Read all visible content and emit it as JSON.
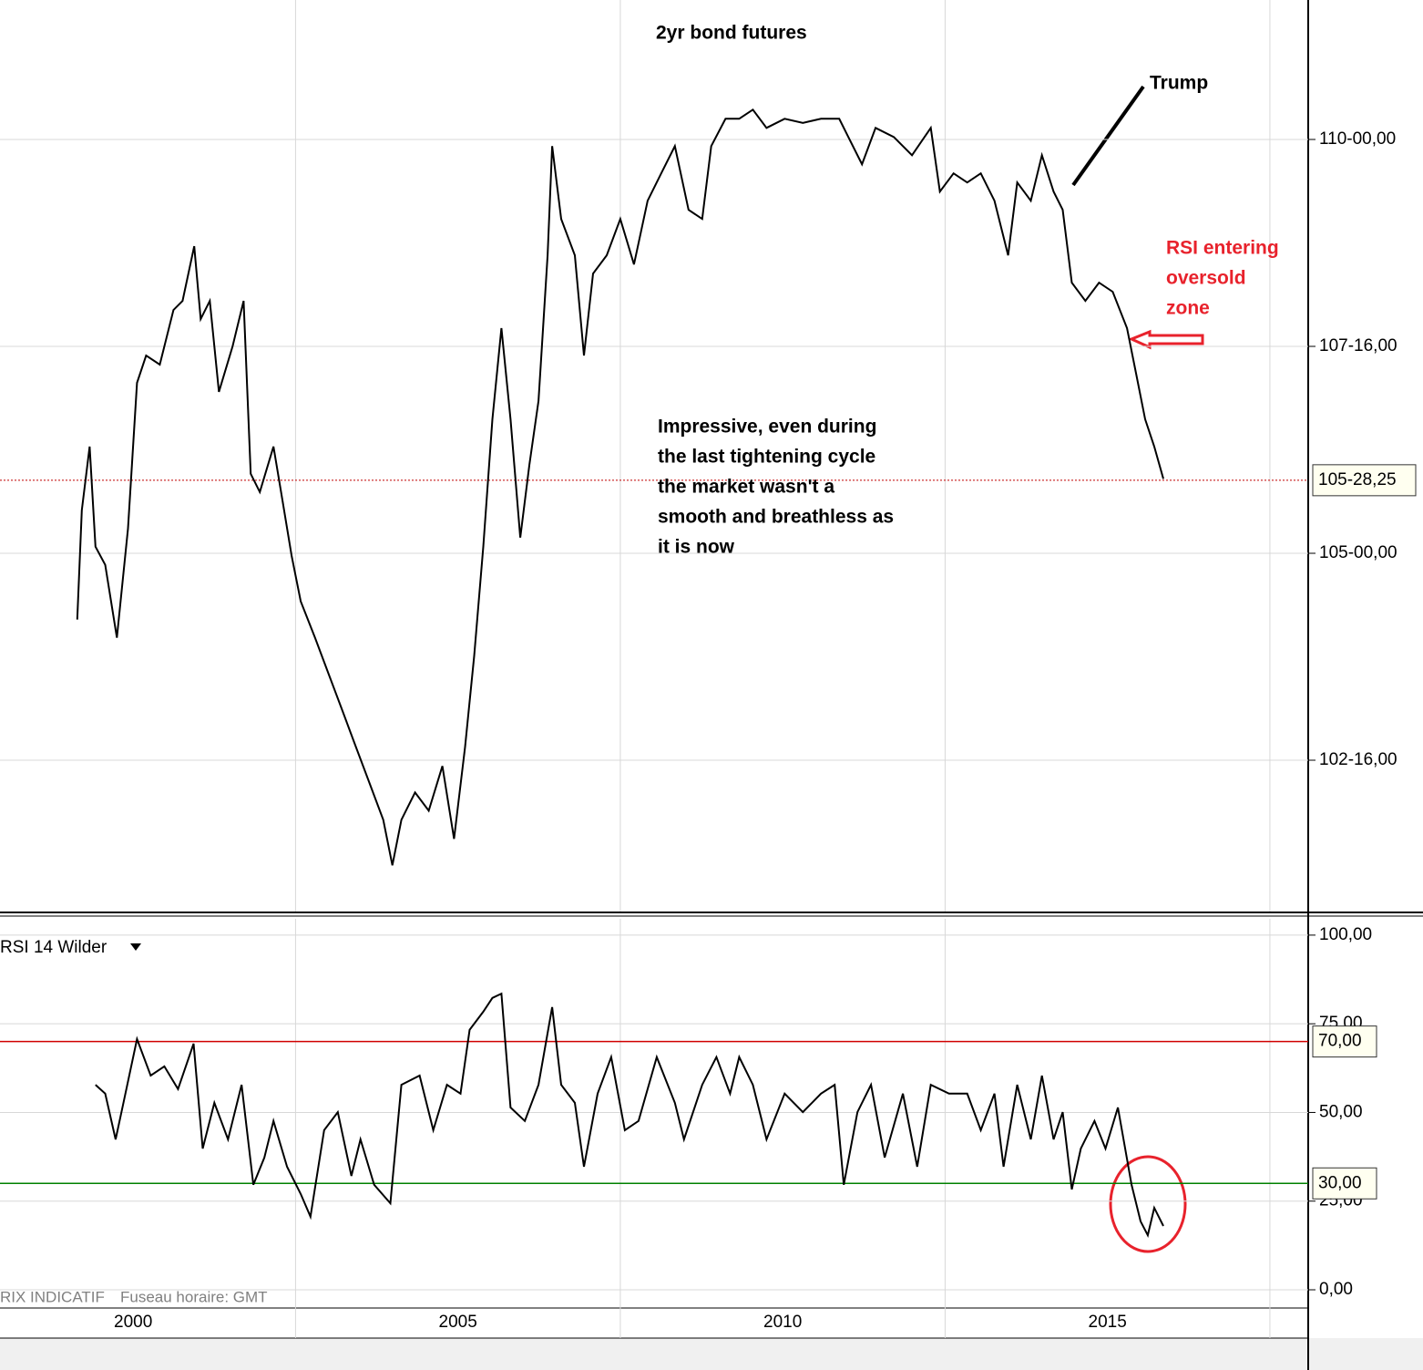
{
  "chart_data": [
    {
      "type": "line",
      "title": "2yr bond futures",
      "color": "#000000",
      "xlim": [
        2000.45,
        2020.59
      ],
      "xgrid": [
        2005,
        2010,
        2015,
        2020
      ],
      "ylim": [
        100.672,
        111.685
      ],
      "yticks": [
        {
          "value": 110,
          "label": "110-00,00"
        },
        {
          "value": 107.5,
          "label": "107-16,00"
        },
        {
          "value": 105,
          "label": "105-00,00"
        },
        {
          "value": 102.5,
          "label": "102-16,00"
        }
      ],
      "last": {
        "value": 105.8828,
        "label": "105-28,25",
        "color": "#c00000"
      },
      "annotations": [
        {
          "lines": [
            "Trump"
          ],
          "color": "#000000"
        },
        {
          "lines": [
            "RSI entering",
            "oversold",
            "zone"
          ],
          "color": "#e8222c"
        },
        {
          "lines": [
            "Impressive, even during",
            "the last tightening cycle",
            "the market wasn't a",
            "smooth and breathless as",
            "it is now"
          ],
          "color": "#000000"
        }
      ],
      "x": [
        2001.64,
        2001.71,
        2001.83,
        2001.92,
        2002.07,
        2002.25,
        2002.42,
        2002.56,
        2002.7,
        2002.91,
        2003.12,
        2003.26,
        2003.44,
        2003.54,
        2003.68,
        2003.82,
        2004.03,
        2004.2,
        2004.31,
        2004.45,
        2004.66,
        2004.8,
        2004.94,
        2005.08,
        2005.3,
        2005.51,
        2005.72,
        2005.93,
        2006.14,
        2006.35,
        2006.49,
        2006.63,
        2006.84,
        2007.05,
        2007.26,
        2007.44,
        2007.61,
        2007.75,
        2007.89,
        2008.03,
        2008.17,
        2008.31,
        2008.46,
        2008.6,
        2008.74,
        2008.88,
        2008.95,
        2009.09,
        2009.3,
        2009.44,
        2009.58,
        2009.79,
        2010.0,
        2010.21,
        2010.42,
        2010.63,
        2010.84,
        2011.05,
        2011.26,
        2011.4,
        2011.62,
        2011.83,
        2012.04,
        2012.25,
        2012.53,
        2012.81,
        2013.09,
        2013.37,
        2013.51,
        2013.72,
        2013.93,
        2014.21,
        2014.49,
        2014.78,
        2014.92,
        2015.13,
        2015.34,
        2015.55,
        2015.76,
        2015.97,
        2016.11,
        2016.32,
        2016.49,
        2016.67,
        2016.81,
        2016.95,
        2017.16,
        2017.37,
        2017.58,
        2017.8,
        2017.94,
        2018.08,
        2018.22,
        2018.36
      ],
      "values": [
        104.2,
        105.52,
        106.29,
        105.08,
        104.86,
        103.98,
        105.3,
        107.06,
        107.39,
        107.28,
        107.94,
        108.05,
        108.71,
        107.83,
        108.05,
        106.95,
        107.5,
        108.05,
        105.96,
        105.74,
        106.29,
        105.63,
        104.97,
        104.42,
        103.98,
        103.54,
        103.1,
        102.66,
        102.22,
        101.78,
        101.23,
        101.78,
        102.11,
        101.89,
        102.43,
        101.55,
        102.66,
        103.76,
        105.08,
        106.62,
        107.72,
        106.62,
        105.19,
        106.07,
        106.84,
        108.6,
        109.92,
        109.04,
        108.6,
        107.39,
        108.38,
        108.6,
        109.04,
        108.49,
        109.26,
        109.59,
        109.92,
        109.15,
        109.04,
        109.92,
        110.25,
        110.25,
        110.36,
        110.14,
        110.25,
        110.2,
        110.25,
        110.25,
        110.03,
        109.7,
        110.14,
        110.03,
        109.81,
        110.14,
        109.37,
        109.59,
        109.48,
        109.59,
        109.26,
        108.6,
        109.48,
        109.26,
        109.81,
        109.37,
        109.15,
        108.27,
        108.05,
        108.27,
        108.16,
        107.72,
        107.17,
        106.62,
        106.29,
        105.9
      ]
    },
    {
      "type": "line",
      "title": "RSI 14 Wilder",
      "color": "#000000",
      "xlim": [
        2000.45,
        2020.59
      ],
      "xgrid": [
        2005,
        2010,
        2015,
        2020
      ],
      "xticks": [
        {
          "value": 2002.5,
          "label": "2000"
        },
        {
          "value": 2007.5,
          "label": "2005"
        },
        {
          "value": 2012.5,
          "label": "2010"
        },
        {
          "value": 2017.5,
          "label": "2015"
        }
      ],
      "ylim": [
        -5.14,
        104.6
      ],
      "yticks": [
        {
          "value": 100,
          "label": "100,00"
        },
        {
          "value": 75,
          "label": "75,00"
        },
        {
          "value": 50,
          "label": "50,00"
        },
        {
          "value": 25,
          "label": "25,00"
        },
        {
          "value": 0,
          "label": "0,00"
        }
      ],
      "levels": [
        {
          "value": 70,
          "label": "70,00",
          "color": "#d00000"
        },
        {
          "value": 30,
          "label": "30,00",
          "color": "#008000"
        }
      ],
      "notes": [
        "RIX INDICATIF",
        "Fuseau horaire: GMT"
      ],
      "x": [
        2001.92,
        2002.07,
        2002.23,
        2002.35,
        2002.56,
        2002.77,
        2002.98,
        2003.19,
        2003.43,
        2003.57,
        2003.75,
        2003.96,
        2004.17,
        2004.35,
        2004.52,
        2004.66,
        2004.87,
        2005.08,
        2005.23,
        2005.44,
        2005.65,
        2005.86,
        2006.0,
        2006.21,
        2006.46,
        2006.63,
        2006.91,
        2007.12,
        2007.33,
        2007.54,
        2007.68,
        2007.89,
        2008.03,
        2008.17,
        2008.31,
        2008.53,
        2008.74,
        2008.95,
        2009.09,
        2009.3,
        2009.44,
        2009.65,
        2009.86,
        2010.07,
        2010.28,
        2010.56,
        2010.84,
        2010.98,
        2011.26,
        2011.48,
        2011.69,
        2011.83,
        2012.04,
        2012.25,
        2012.53,
        2012.81,
        2013.09,
        2013.3,
        2013.44,
        2013.65,
        2013.86,
        2014.07,
        2014.35,
        2014.57,
        2014.78,
        2015.06,
        2015.34,
        2015.55,
        2015.76,
        2015.9,
        2016.11,
        2016.32,
        2016.49,
        2016.67,
        2016.81,
        2016.95,
        2017.09,
        2017.3,
        2017.47,
        2017.66,
        2017.87,
        2018.01,
        2018.12,
        2018.22,
        2018.36
      ],
      "values": [
        57.8,
        55.3,
        42.4,
        52.7,
        70.7,
        60.4,
        63.0,
        56.6,
        69.4,
        39.8,
        52.7,
        42.4,
        57.8,
        29.6,
        37.3,
        47.6,
        34.7,
        27.0,
        20.6,
        45.0,
        50.1,
        32.1,
        42.4,
        29.6,
        24.4,
        57.8,
        60.4,
        45.0,
        57.8,
        55.3,
        73.3,
        78.4,
        82.3,
        83.5,
        51.4,
        47.6,
        57.8,
        79.7,
        57.8,
        52.7,
        34.7,
        55.3,
        65.6,
        45.0,
        47.6,
        65.6,
        52.7,
        42.4,
        57.8,
        65.6,
        55.3,
        65.6,
        57.8,
        42.4,
        55.3,
        50.1,
        55.3,
        57.8,
        29.6,
        50.1,
        57.8,
        37.3,
        55.3,
        34.7,
        57.8,
        55.3,
        55.3,
        45.0,
        55.3,
        34.7,
        57.8,
        42.4,
        60.4,
        42.4,
        50.1,
        28.3,
        39.8,
        47.6,
        39.8,
        51.4,
        29.6,
        19.3,
        15.4,
        23.1,
        18.0
      ]
    }
  ]
}
